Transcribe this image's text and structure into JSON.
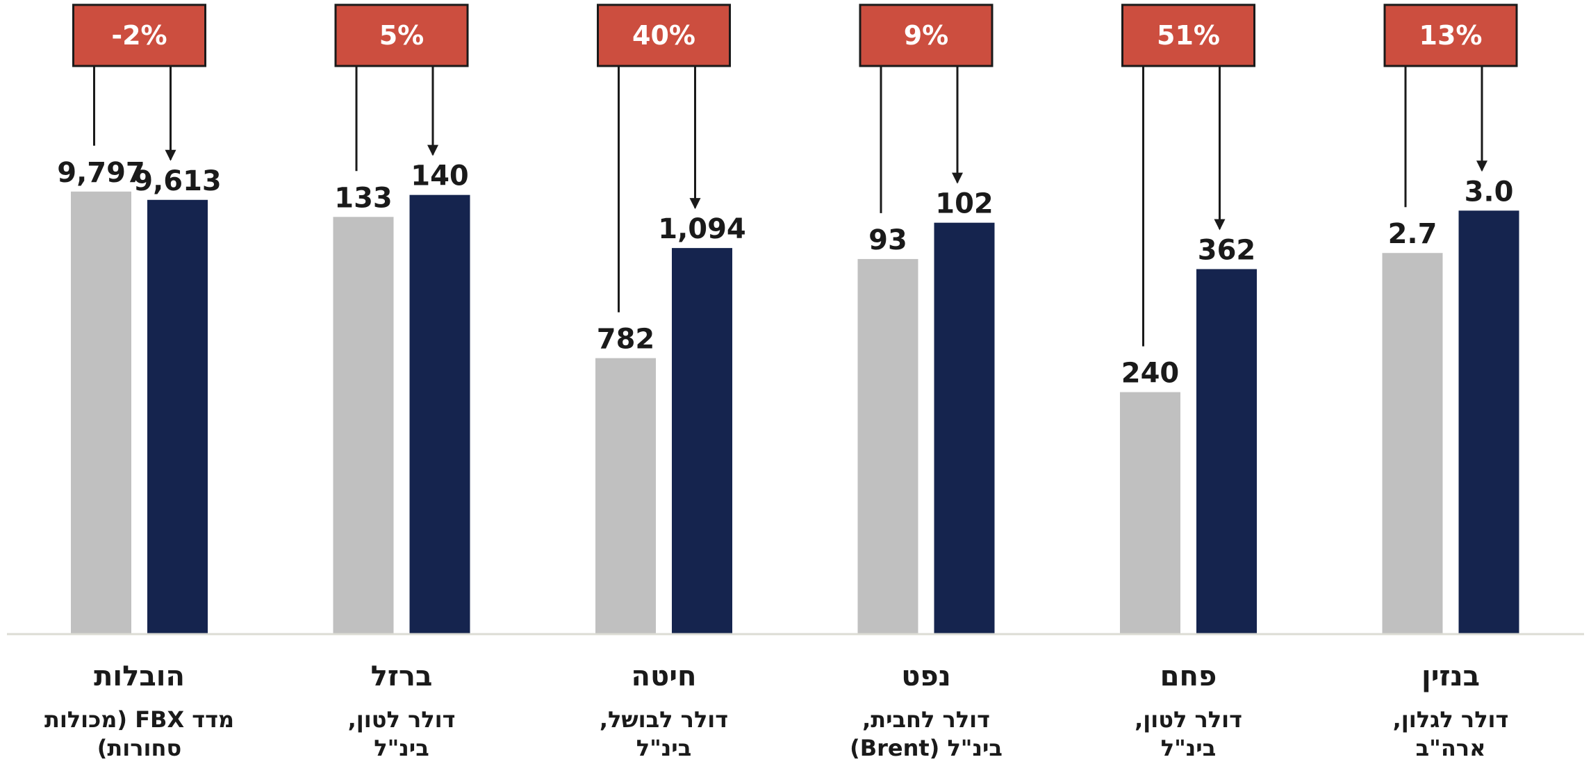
{
  "chart_data": {
    "type": "bar",
    "colors": {
      "before": "#c0c0c0",
      "after": "#15244e",
      "change_box": "#cc4e3f",
      "change_box_border": "#1a1a1a"
    },
    "categories": [
      {
        "name": "הובלות",
        "subtitle_lines": [
          "מדד FBX (מכולות",
          "סחורות)"
        ]
      },
      {
        "name": "ברזל",
        "subtitle_lines": [
          "דולר לטון,",
          "בינ\"ל"
        ]
      },
      {
        "name": "חיטה",
        "subtitle_lines": [
          "דולר לבושל,",
          "בינ\"ל"
        ]
      },
      {
        "name": "נפט",
        "subtitle_lines": [
          "דולר לחבית,",
          "בינ\"ל (Brent)"
        ]
      },
      {
        "name": "פחם",
        "subtitle_lines": [
          "דולר לטון,",
          "בינ\"ל"
        ]
      },
      {
        "name": "בנזין",
        "subtitle_lines": [
          "דולר לגלון,",
          "ארה\"ב"
        ]
      }
    ],
    "series": [
      {
        "values": [
          9797,
          133,
          782,
          93,
          240,
          2.7
        ],
        "labels": [
          "9,797",
          "133",
          "782",
          "93",
          "240",
          "2.7"
        ]
      },
      {
        "values": [
          9613,
          140,
          1094,
          102,
          362,
          3.0
        ],
        "labels": [
          "9,613",
          "140",
          "1,094",
          "102",
          "362",
          "3.0"
        ]
      }
    ],
    "change_labels": [
      "-2%",
      "5%",
      "40%",
      "9%",
      "51%",
      "13%"
    ],
    "ylim_per_category": [
      [
        0,
        12500
      ],
      [
        0,
        180
      ],
      [
        0,
        1600
      ],
      [
        0,
        140
      ],
      [
        0,
        560
      ],
      [
        0,
        4.0
      ]
    ],
    "grid": false,
    "legend": "none"
  }
}
